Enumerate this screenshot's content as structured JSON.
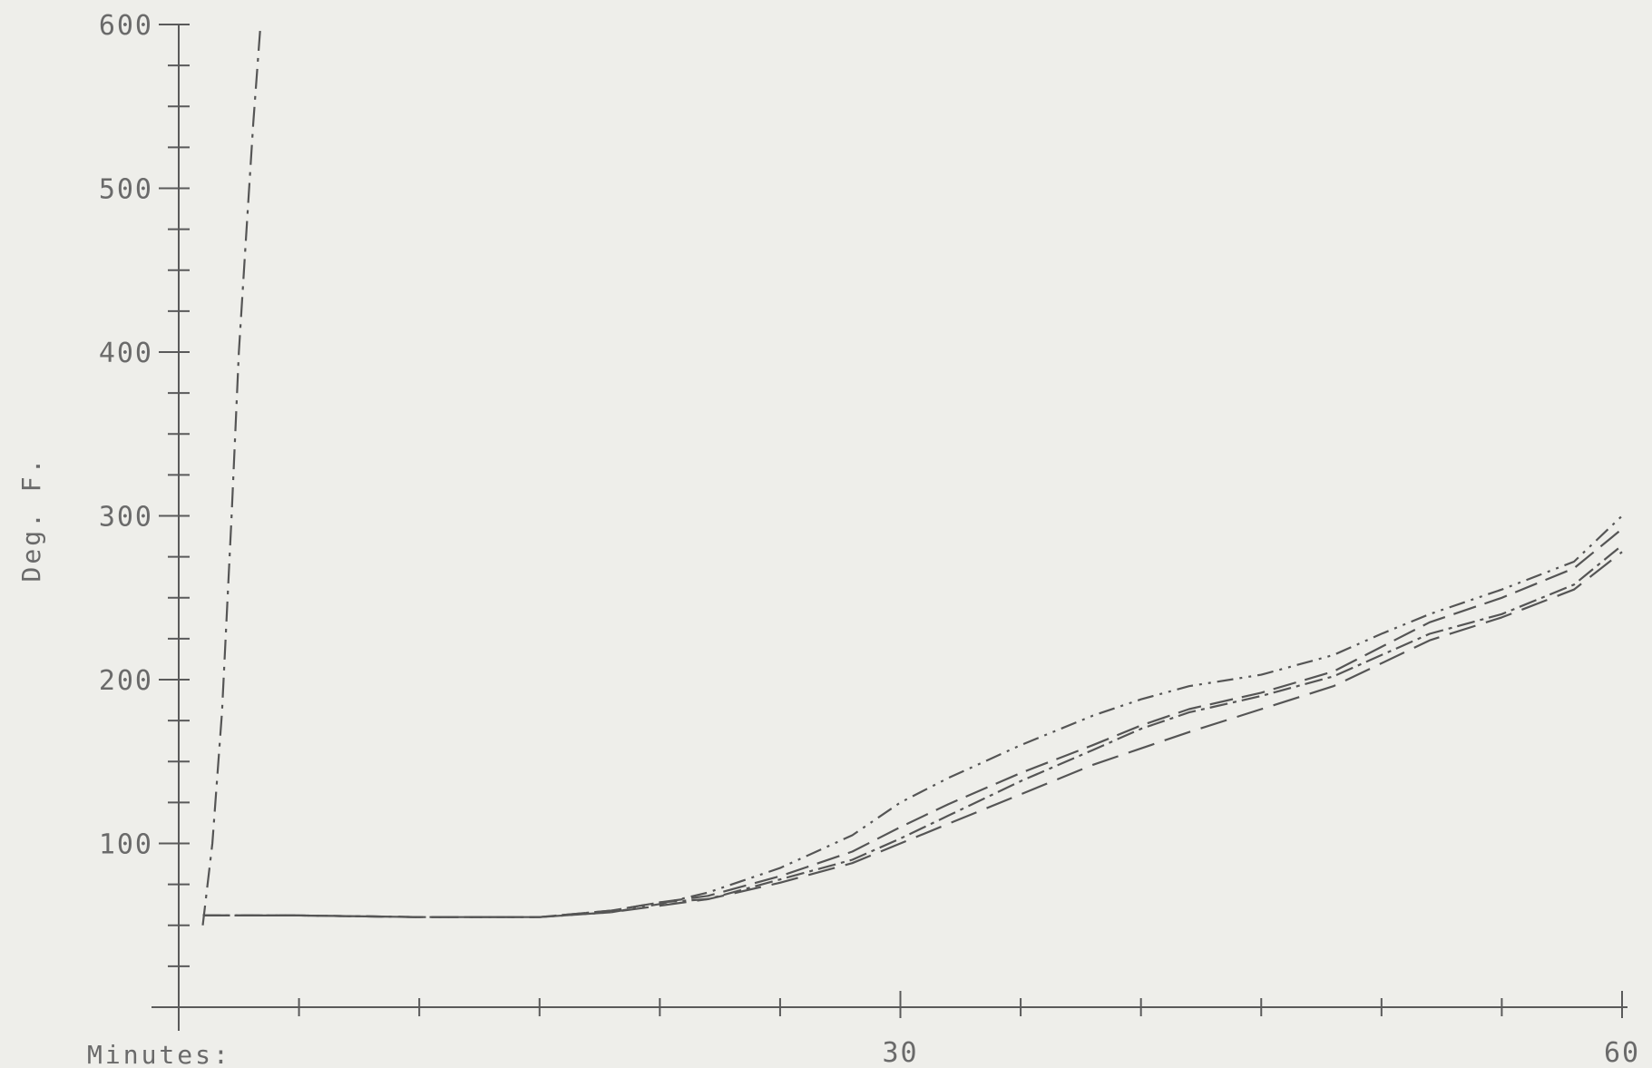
{
  "chart_data": {
    "type": "line",
    "title": "",
    "xlabel": "Minutes:",
    "ylabel": "Deg. F.",
    "xlim": [
      0,
      60
    ],
    "ylim": [
      0,
      600
    ],
    "x_ticks": [
      {
        "value": 30,
        "label": "30"
      },
      {
        "value": 60,
        "label": "60"
      }
    ],
    "x_minor_step": 5,
    "y_ticks": [
      {
        "value": 100,
        "label": "100"
      },
      {
        "value": 200,
        "label": "200"
      },
      {
        "value": 300,
        "label": "300"
      },
      {
        "value": 400,
        "label": "400"
      },
      {
        "value": 500,
        "label": "500"
      },
      {
        "value": 600,
        "label": "600"
      }
    ],
    "y_minor_step": 25,
    "grid": false,
    "legend": "none",
    "series": [
      {
        "dash": "22,8,4,8",
        "x": [
          1,
          1.4,
          1.8,
          2.2,
          2.5,
          2.8,
          3.1,
          3.4
        ],
        "y": [
          50,
          100,
          180,
          300,
          400,
          470,
          540,
          600
        ]
      },
      {
        "dash": "18,7,3,7,3,7",
        "x": [
          1,
          5,
          10,
          15,
          18,
          20,
          22,
          25,
          28,
          30,
          32,
          35,
          38,
          40,
          42,
          45,
          48,
          50,
          52,
          55,
          58,
          60
        ],
        "y": [
          56,
          56,
          55,
          55,
          58,
          63,
          70,
          85,
          105,
          125,
          140,
          160,
          178,
          188,
          196,
          203,
          215,
          228,
          240,
          255,
          272,
          300
        ]
      },
      {
        "dash": "26,10",
        "x": [
          1,
          5,
          10,
          15,
          18,
          20,
          22,
          25,
          28,
          30,
          32,
          35,
          38,
          40,
          42,
          45,
          48,
          50,
          52,
          55,
          58,
          60
        ],
        "y": [
          56,
          56,
          55,
          55,
          59,
          64,
          68,
          80,
          95,
          110,
          124,
          143,
          160,
          172,
          182,
          192,
          205,
          220,
          235,
          250,
          268,
          292
        ]
      },
      {
        "dash": "20,6,4,6",
        "x": [
          1,
          5,
          10,
          15,
          18,
          20,
          22,
          25,
          28,
          30,
          32,
          35,
          38,
          40,
          42,
          45,
          48,
          50,
          52,
          55,
          58,
          60
        ],
        "y": [
          56,
          56,
          55,
          55,
          59,
          64,
          66,
          78,
          90,
          103,
          117,
          138,
          157,
          170,
          180,
          190,
          202,
          215,
          228,
          240,
          258,
          282
        ]
      },
      {
        "dash": "30,12",
        "x": [
          1,
          5,
          10,
          15,
          18,
          20,
          22,
          25,
          28,
          30,
          32,
          35,
          38,
          40,
          42,
          45,
          48,
          50,
          52,
          55,
          58,
          60
        ],
        "y": [
          56,
          56,
          55,
          55,
          58,
          62,
          66,
          76,
          88,
          100,
          112,
          130,
          148,
          158,
          168,
          182,
          196,
          210,
          224,
          238,
          255,
          278
        ]
      }
    ]
  }
}
